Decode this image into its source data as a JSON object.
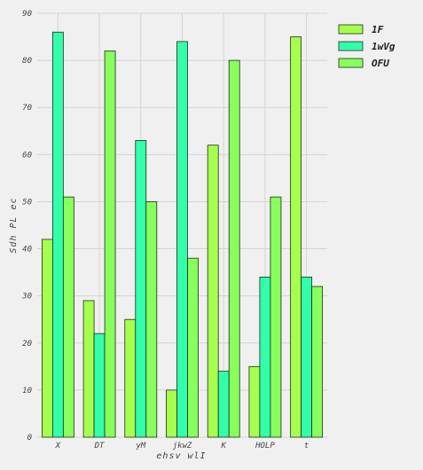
{
  "chart_data": {
    "type": "bar",
    "categories": [
      "X",
      "DT",
      "yM",
      "jkwZ",
      "K",
      "HOLP",
      "t"
    ],
    "series": [
      {
        "name": "1F",
        "values": [
          42,
          29,
          25,
          10,
          62,
          15,
          85
        ],
        "color": "#a6ff4d"
      },
      {
        "name": "1wVg",
        "values": [
          86,
          22,
          63,
          84,
          14,
          34,
          34
        ],
        "color": "#33ffaa"
      },
      {
        "name": "OFU",
        "values": [
          51,
          82,
          50,
          38,
          80,
          51,
          32
        ],
        "color": "#88ff5c"
      }
    ],
    "title": "",
    "xlabel": "ehsv  wlI",
    "ylabel": "Sdh  PL ec",
    "ylim": [
      0,
      90
    ],
    "yticks": [
      0,
      10,
      20,
      30,
      40,
      50,
      60,
      70,
      80,
      90
    ],
    "grid": true,
    "legend_position": "top-right",
    "colors": {
      "background": "#f0f0f0",
      "grid": "#d4d4d4",
      "bar_edge": "#1e2a1e"
    }
  }
}
